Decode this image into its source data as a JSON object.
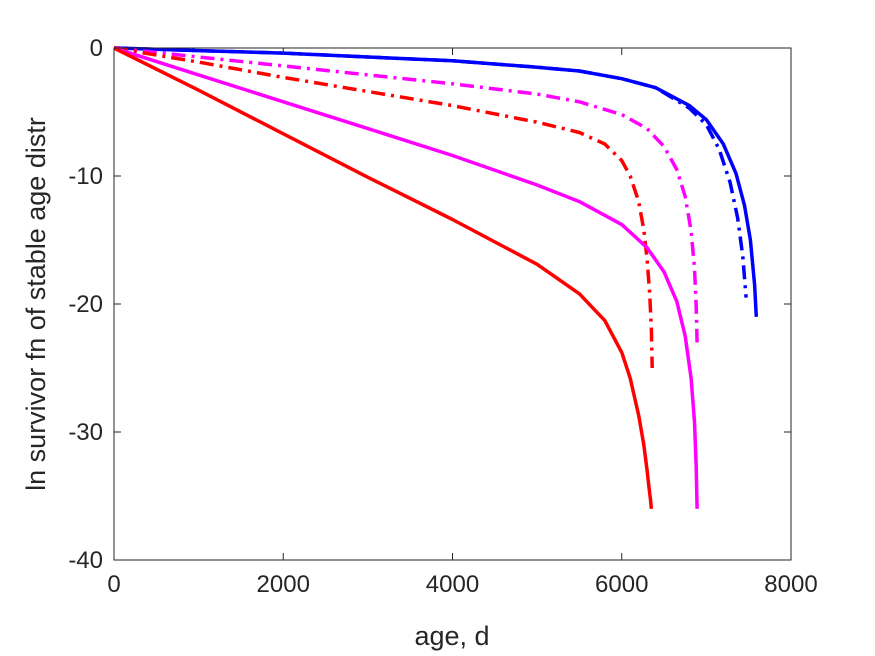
{
  "chart_data": {
    "type": "line",
    "title": "",
    "xlabel": "age, d",
    "ylabel": "ln survivor fn of stable age distr",
    "xlim": [
      0,
      8000
    ],
    "ylim": [
      -40,
      0
    ],
    "xticks": [
      0,
      2000,
      4000,
      6000,
      8000
    ],
    "yticks": [
      0,
      -10,
      -20,
      -30,
      -40
    ],
    "xtick_labels": [
      "0",
      "2000",
      "4000",
      "6000",
      "8000"
    ],
    "ytick_labels": [
      "0",
      "-10",
      "-20",
      "-30",
      "-40"
    ],
    "grid": false,
    "series": [
      {
        "color": "#0000ff",
        "style": "solid",
        "x": [
          0,
          1000,
          2000,
          3000,
          4000,
          5000,
          5500,
          6000,
          6400,
          6800,
          7000,
          7200,
          7350,
          7450,
          7520,
          7570,
          7590
        ],
        "y": [
          0,
          -0.2,
          -0.4,
          -0.7,
          -1.0,
          -1.5,
          -1.8,
          -2.4,
          -3.1,
          -4.5,
          -5.6,
          -7.5,
          -9.8,
          -12.3,
          -15.0,
          -18.5,
          -21.0
        ]
      },
      {
        "color": "#0000ff",
        "style": "dashdot",
        "x": [
          0,
          1000,
          2000,
          3000,
          4000,
          5000,
          5500,
          6000,
          6400,
          6800,
          7000,
          7150,
          7280,
          7370,
          7430,
          7470
        ],
        "y": [
          0,
          -0.2,
          -0.4,
          -0.7,
          -1.0,
          -1.5,
          -1.8,
          -2.4,
          -3.1,
          -4.7,
          -6.0,
          -7.9,
          -10.5,
          -13.3,
          -16.3,
          -19.5
        ]
      },
      {
        "color": "#ff00ff",
        "style": "dashdot",
        "x": [
          0,
          1000,
          2000,
          3000,
          4000,
          5000,
          5500,
          6000,
          6300,
          6500,
          6650,
          6750,
          6820,
          6860,
          6880,
          6890
        ],
        "y": [
          0,
          -0.7,
          -1.4,
          -2.1,
          -2.8,
          -3.6,
          -4.2,
          -5.2,
          -6.3,
          -7.7,
          -9.5,
          -11.6,
          -14.3,
          -17.2,
          -20.2,
          -23.0
        ]
      },
      {
        "color": "#ff0000",
        "style": "dashdot",
        "x": [
          0,
          1000,
          2000,
          3000,
          4000,
          5000,
          5500,
          5800,
          6000,
          6100,
          6200,
          6260,
          6300,
          6330,
          6350,
          6360
        ],
        "y": [
          0,
          -1.1,
          -2.3,
          -3.4,
          -4.5,
          -5.8,
          -6.6,
          -7.5,
          -8.8,
          -10.0,
          -12.0,
          -14.2,
          -16.5,
          -19.2,
          -22.0,
          -25.0
        ]
      },
      {
        "color": "#ff00ff",
        "style": "solid",
        "x": [
          0,
          1000,
          2000,
          3000,
          4000,
          5000,
          5500,
          6000,
          6300,
          6500,
          6650,
          6750,
          6820,
          6860,
          6880,
          6890
        ],
        "y": [
          0,
          -2.1,
          -4.2,
          -6.3,
          -8.4,
          -10.7,
          -12.0,
          -13.8,
          -15.6,
          -17.5,
          -19.8,
          -22.5,
          -25.8,
          -29.2,
          -32.7,
          -36.0
        ]
      },
      {
        "color": "#ff0000",
        "style": "solid",
        "x": [
          0,
          1000,
          2000,
          3000,
          4000,
          5000,
          5500,
          5800,
          6000,
          6100,
          6200,
          6260,
          6300,
          6320,
          6340,
          6350
        ],
        "y": [
          0,
          -3.3,
          -6.7,
          -10.1,
          -13.4,
          -16.9,
          -19.2,
          -21.3,
          -23.8,
          -25.8,
          -28.7,
          -31.0,
          -33.0,
          -34.2,
          -35.3,
          -36.0
        ]
      }
    ]
  }
}
